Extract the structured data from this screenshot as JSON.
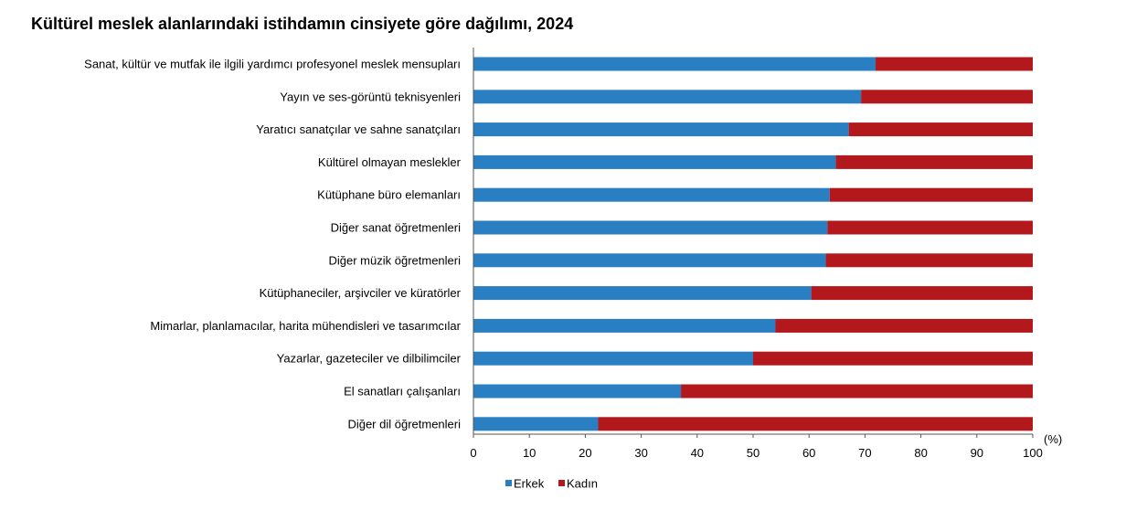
{
  "chart_data": {
    "type": "bar",
    "orientation": "horizontal",
    "stacked": true,
    "title": "Kültürel meslek alanlarındaki istihdamın cinsiyete göre dağılımı, 2024",
    "x_unit_label": "(%)",
    "xlim": [
      0,
      100
    ],
    "x_ticks": [
      "0",
      "10",
      "20",
      "30",
      "40",
      "50",
      "60",
      "70",
      "80",
      "90",
      "100"
    ],
    "grid": false,
    "legend_position": "bottom-left",
    "categories": [
      "Sanat, kültür ve mutfak ile ilgili yardımcı profesyonel meslek mensupları",
      "Yayın ve ses-görüntü teknisyenleri",
      "Yaratıcı sanatçılar ve sahne sanatçıları",
      "Kültürel olmayan meslekler",
      "Kütüphane büro elemanları",
      "Diğer sanat öğretmenleri",
      "Diğer müzik öğretmenleri",
      "Kütüphaneciler, arşivciler ve küratörler",
      "Mimarlar, planlamacılar, harita mühendisleri ve tasarımcılar",
      "Yazarlar, gazeteciler ve dilbilimciler",
      "El sanatları çalışanları",
      "Diğer dil öğretmenleri"
    ],
    "series": [
      {
        "name": "Erkek",
        "color": "#2a7ec2",
        "values": [
          71.9,
          69.3,
          67.1,
          64.8,
          63.7,
          63.3,
          63.0,
          60.4,
          54.0,
          50.0,
          37.1,
          22.3
        ]
      },
      {
        "name": "Kadın",
        "color": "#b3181c",
        "values": [
          28.1,
          30.7,
          32.9,
          35.2,
          36.3,
          36.7,
          37.0,
          39.6,
          46.0,
          50.0,
          62.9,
          77.7
        ]
      }
    ]
  }
}
